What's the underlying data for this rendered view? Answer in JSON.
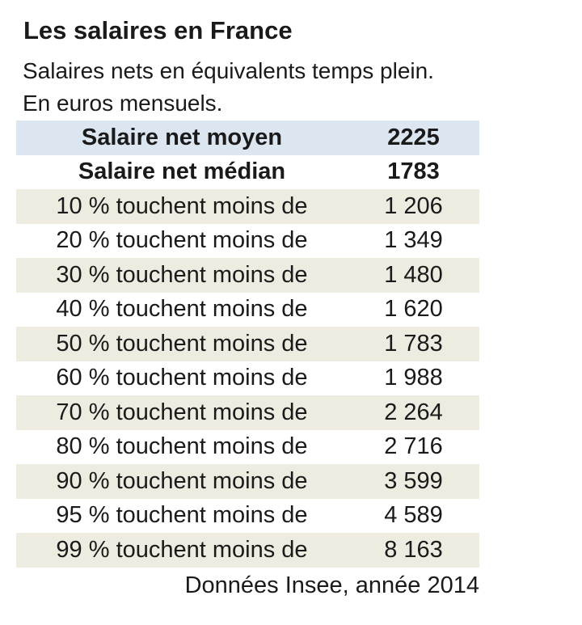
{
  "page": {
    "title": "Les salaires en France",
    "subtitle_line1": "Salaires nets en équivalents temps plein.",
    "subtitle_line2": "En euros mensuels.",
    "source_note": "Données Insee, année 2014"
  },
  "table": {
    "rows": [
      {
        "label": "Salaire net moyen",
        "value": "2225"
      },
      {
        "label": "Salaire net médian",
        "value": "1783"
      },
      {
        "label": "10 % touchent moins de",
        "value": "1 206"
      },
      {
        "label": "20 % touchent moins de",
        "value": "1 349"
      },
      {
        "label": "30 % touchent moins de",
        "value": "1 480"
      },
      {
        "label": "40 % touchent moins de",
        "value": "1 620"
      },
      {
        "label": "50 % touchent moins de",
        "value": "1 783"
      },
      {
        "label": "60 % touchent moins de",
        "value": "1 988"
      },
      {
        "label": "70 % touchent moins de",
        "value": "2 264"
      },
      {
        "label": "80 % touchent moins de",
        "value": "2 716"
      },
      {
        "label": "90 % touchent moins de",
        "value": "3 599"
      },
      {
        "label": "95 % touchent moins de",
        "value": "4 589"
      },
      {
        "label": "99 % touchent moins de",
        "value": "8 163"
      }
    ]
  },
  "colors": {
    "highlight_blue": "#dce6f1",
    "stripe_beige": "#eeece1",
    "text": "#1a1a1a",
    "background": "#ffffff"
  },
  "chart_data": {
    "type": "table",
    "title": "Les salaires en France",
    "subtitle": "Salaires nets en équivalents temps plein. En euros mensuels.",
    "categories": [
      "Salaire net moyen",
      "Salaire net médian",
      "10 % touchent moins de",
      "20 % touchent moins de",
      "30 % touchent moins de",
      "40 % touchent moins de",
      "50 % touchent moins de",
      "60 % touchent moins de",
      "70 % touchent moins de",
      "80 % touchent moins de",
      "90 % touchent moins de",
      "95 % touchent moins de",
      "99 % touchent moins de"
    ],
    "values": [
      2225,
      1783,
      1206,
      1349,
      1480,
      1620,
      1783,
      1988,
      2264,
      2716,
      3599,
      4589,
      8163
    ],
    "unit": "euros mensuels",
    "source": "Données Insee, année 2014"
  }
}
